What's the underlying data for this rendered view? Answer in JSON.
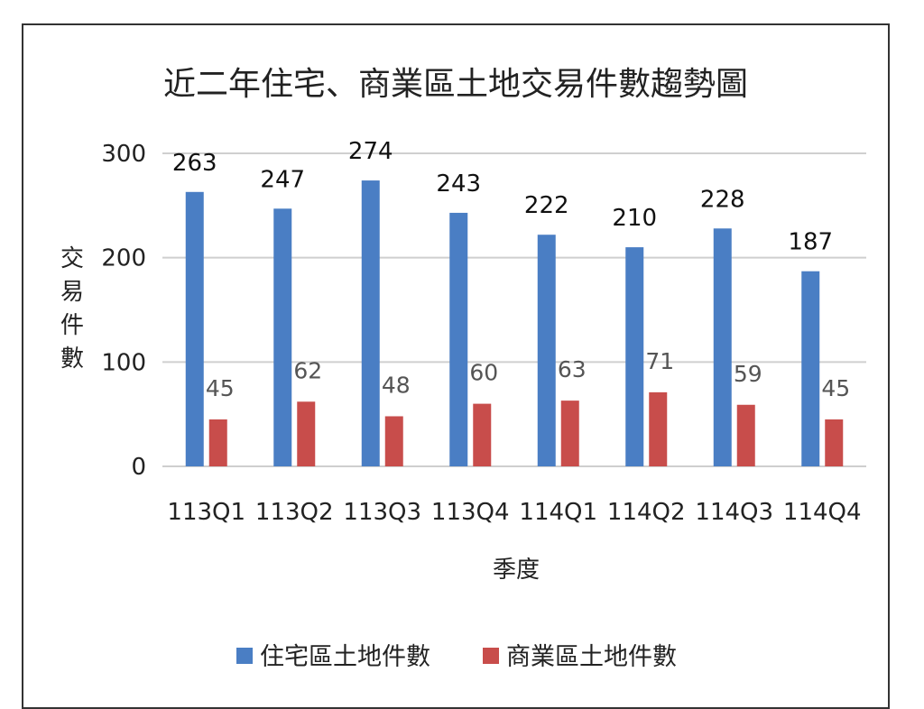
{
  "chart_data": {
    "type": "bar",
    "title": "近二年住宅、商業區土地交易件數趨勢圖",
    "xlabel": "季度",
    "ylabel": "交易件數",
    "ylim": [
      0,
      300
    ],
    "yticks": [
      0,
      100,
      200,
      300
    ],
    "grid": true,
    "legend_position": "bottom",
    "categories": [
      "113Q1",
      "113Q2",
      "113Q3",
      "113Q4",
      "114Q1",
      "114Q2",
      "114Q3",
      "114Q4"
    ],
    "series": [
      {
        "name": "住宅區土地件數",
        "color": "#4a7ec4",
        "values": [
          263,
          247,
          274,
          243,
          222,
          210,
          228,
          187
        ]
      },
      {
        "name": "商業區土地件數",
        "color": "#c84d4b",
        "values": [
          45,
          62,
          48,
          60,
          63,
          71,
          59,
          45
        ]
      }
    ]
  }
}
